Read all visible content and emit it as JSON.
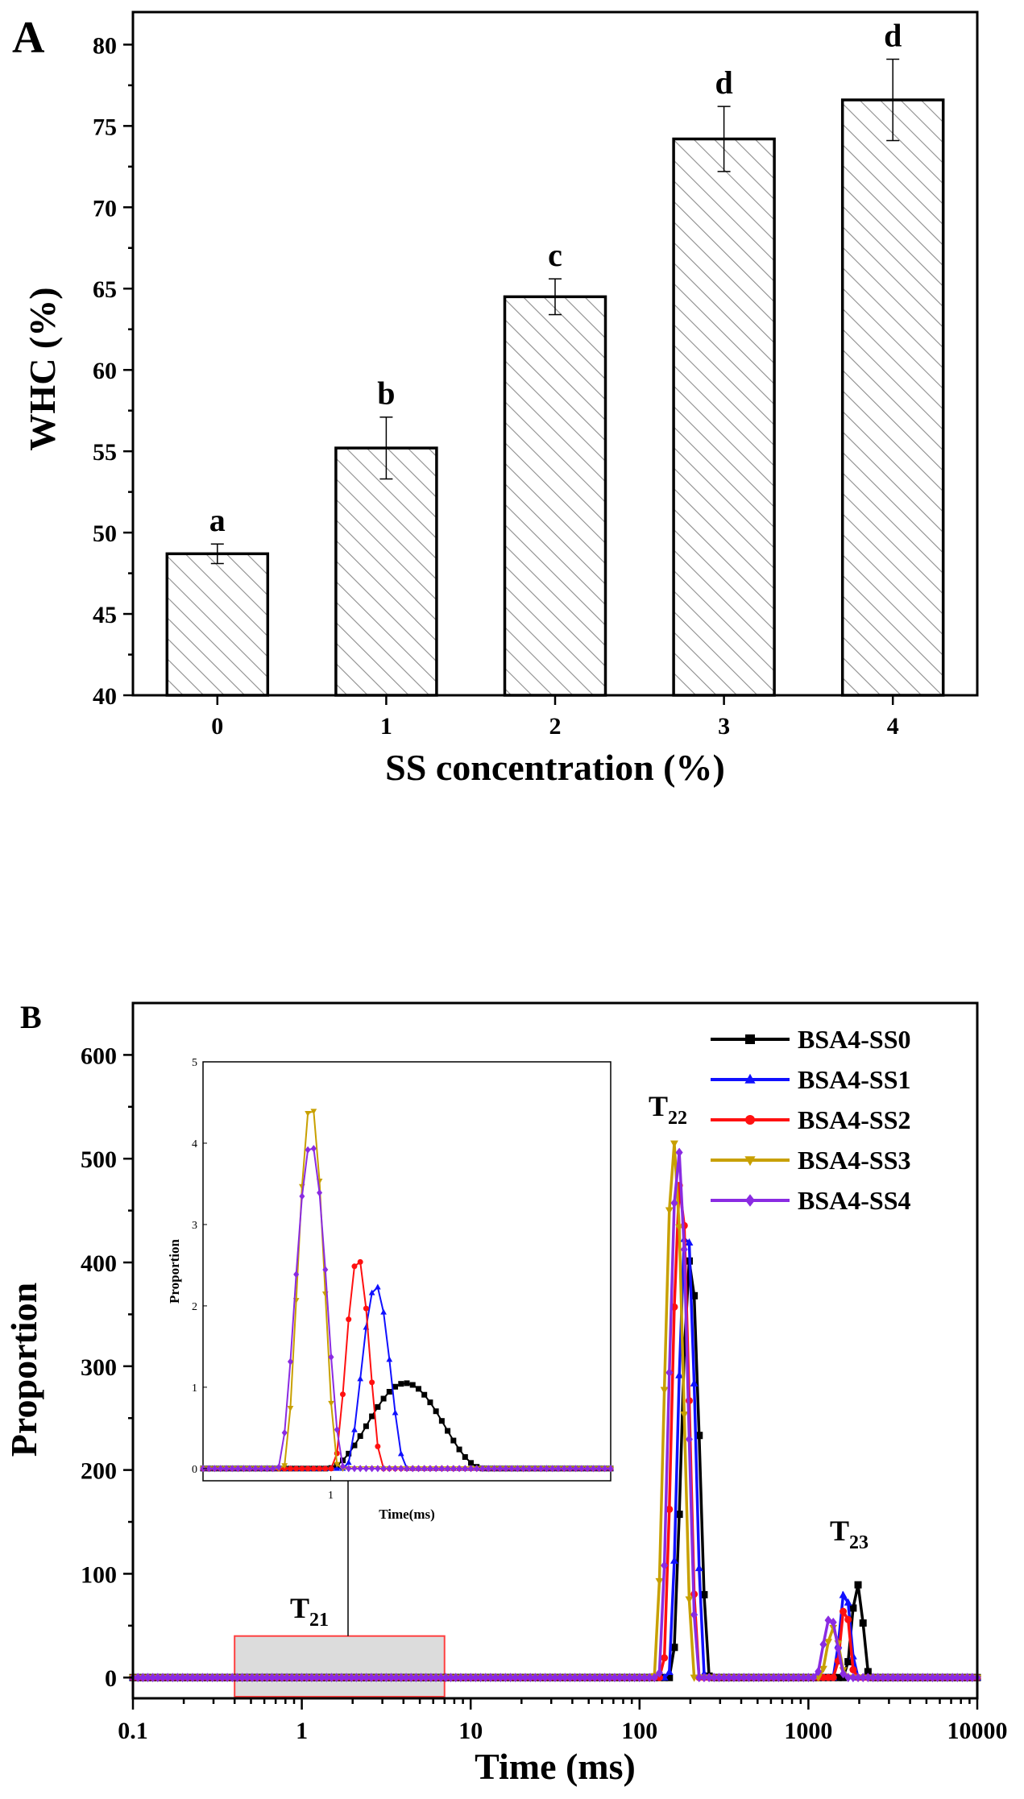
{
  "chart_data": [
    {
      "type": "bar",
      "panel_label": "A",
      "categories": [
        "0",
        "1",
        "2",
        "3",
        "4"
      ],
      "values": [
        48.7,
        55.2,
        64.5,
        74.2,
        76.6
      ],
      "errors": [
        0.6,
        1.9,
        1.1,
        2.0,
        2.5
      ],
      "significance": [
        "a",
        "b",
        "c",
        "d",
        "d"
      ],
      "xlabel": "SS concentration (%)",
      "ylabel": "WHC (%)",
      "ylim": [
        40,
        82
      ],
      "yticks": [
        40,
        45,
        50,
        55,
        60,
        65,
        70,
        75,
        80
      ],
      "bar_fill": "hatched",
      "grid": false
    },
    {
      "type": "line",
      "panel_label": "B",
      "xlabel": "Time (ms)",
      "ylabel": "Proportion",
      "xscale": "log",
      "xlim": [
        0.1,
        10000
      ],
      "xticks": [
        "0.1",
        "1",
        "10",
        "100",
        "1000",
        "10000"
      ],
      "ylim": [
        -20,
        650
      ],
      "yticks": [
        "0",
        "100",
        "200",
        "300",
        "400",
        "500",
        "600"
      ],
      "legend_position": "top-right",
      "peak_labels": [
        {
          "main": "T",
          "sub": "21"
        },
        {
          "main": "T",
          "sub": "22"
        },
        {
          "main": "T",
          "sub": "23"
        }
      ],
      "series": [
        {
          "name": "BSA4-SS0",
          "color": "#000000",
          "marker": "square",
          "peaks": [
            {
              "center": 1.85,
              "width": 0.28,
              "height": 1.05
            },
            {
              "center": 200,
              "width": 0.115,
              "height": 405
            },
            {
              "center": 1950,
              "width": 0.075,
              "height": 90
            }
          ]
        },
        {
          "name": "BSA4-SS1",
          "color": "#1010ff",
          "marker": "triangle-up",
          "peaks": [
            {
              "center": 1.45,
              "width": 0.11,
              "height": 2.25
            },
            {
              "center": 190,
              "width": 0.11,
              "height": 440
            },
            {
              "center": 1650,
              "width": 0.07,
              "height": 85
            }
          ]
        },
        {
          "name": "BSA4-SS2",
          "color": "#ff1010",
          "marker": "circle",
          "peaks": [
            {
              "center": 1.25,
              "width": 0.09,
              "height": 2.6
            },
            {
              "center": 175,
              "width": 0.11,
              "height": 480
            },
            {
              "center": 1650,
              "width": 0.06,
              "height": 70
            }
          ]
        },
        {
          "name": "BSA4-SS3",
          "color": "#c8a000",
          "marker": "triangle-down",
          "peaks": [
            {
              "center": 0.85,
              "width": 0.1,
              "height": 4.5
            },
            {
              "center": 160,
              "width": 0.12,
              "height": 515
            },
            {
              "center": 1400,
              "width": 0.08,
              "height": 48
            }
          ]
        },
        {
          "name": "BSA4-SS4",
          "color": "#8a2be2",
          "marker": "diamond",
          "peaks": [
            {
              "center": 0.85,
              "width": 0.12,
              "height": 4.0
            },
            {
              "center": 170,
              "width": 0.12,
              "height": 508
            },
            {
              "center": 1350,
              "width": 0.09,
              "height": 58
            }
          ]
        }
      ],
      "inset": {
        "xlabel": "Time(ms)",
        "ylabel": "Proportion",
        "xlim": [
          0.35,
          10
        ],
        "xticks": [
          "1"
        ],
        "ylim": [
          -0.15,
          5
        ],
        "yticks": [
          "0",
          "1",
          "2",
          "3",
          "4",
          "5"
        ]
      }
    }
  ]
}
